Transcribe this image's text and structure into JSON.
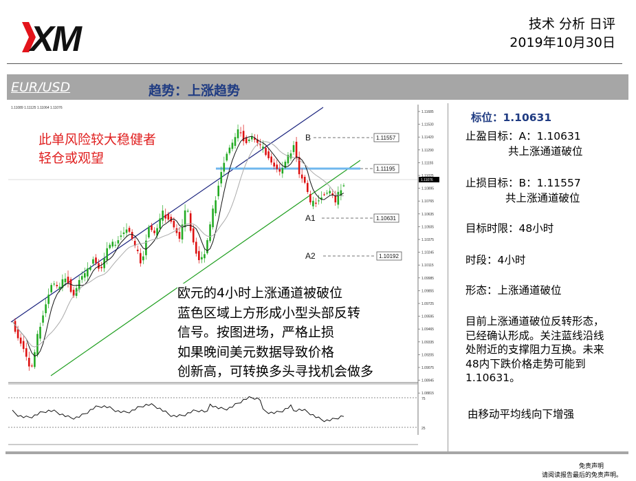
{
  "header": {
    "logo_text": "XM",
    "title": "技术 分析 日评",
    "date": "2019年10月30日"
  },
  "bar": {
    "pair": "EUR/USD",
    "trend": "趋势：上涨趋势"
  },
  "chart_annotations": {
    "warning_lines": [
      "此单风险较大稳健者",
      "轻仓或观望"
    ],
    "analysis_lines": [
      "欧元的4小时上涨通道被破位",
      "蓝色区域上方形成小型头部反转",
      "信号。按图进场，严格止损",
      "如果晚间美元数据导致价格",
      "创新高，可转换多头寻找机会做多"
    ],
    "levels": {
      "B": {
        "label": "B",
        "value": "1.11557"
      },
      "blue": {
        "value": "1.11195"
      },
      "A1": {
        "label": "A1",
        "value": "1.10631"
      },
      "A2": {
        "label": "A2",
        "value": "1.10192"
      }
    },
    "chart_header": "1.11089 1.11125 1.11064 1.11076",
    "price_tag": "1.11076",
    "price_ticks": [
      "1.11685",
      "1.11530",
      "1.11420",
      "1.11290",
      "1.11155",
      "1.11025",
      "1.10895",
      "1.10765",
      "1.10635",
      "1.10505",
      "1.10375",
      "1.10245",
      "1.10115",
      "1.09985",
      "1.09855",
      "1.09725",
      "1.09595",
      "1.09465",
      "1.09335",
      "1.09205",
      "1.09075",
      "1.08945",
      "1.08815"
    ],
    "osc_ticks": [
      "75",
      "25"
    ]
  },
  "panel": {
    "target_label": "标位：1.10631",
    "tp_line1": "止盈目标：A：1.10631",
    "tp_line2": "共上涨通道破位",
    "sl_line1": "止损目标：B：1.11557",
    "sl_line2": "共上涨通道破位",
    "timeframe": "目标时限：48小时",
    "period": "时段：4小时",
    "pattern": "形态：上涨通道破位",
    "desc_lines": [
      "目前上涨通道破位反转形态，",
      "已经确认形成。关注蓝线沿线",
      "处附近的支撑阻力互换。未来",
      "48内下跌价格走势可能到",
      "1.10631。"
    ],
    "ma_note": "由移动平均线向下增强"
  },
  "footer": {
    "disclaimer_title": "免责声明",
    "disclaimer_text": "请阅读报告最后的免责声明。"
  },
  "colors": {
    "bar_bg": "#a6a6a6",
    "trend_text": "#1f3b82",
    "warning_text": "#e02020",
    "logo_red": "#e3141b",
    "candle_up": "#22aa22",
    "candle_down": "#dd1111",
    "channel_upper": "#1a237e",
    "channel_lower": "#1e9e1e",
    "blue_zone": "#6fb7ee"
  }
}
